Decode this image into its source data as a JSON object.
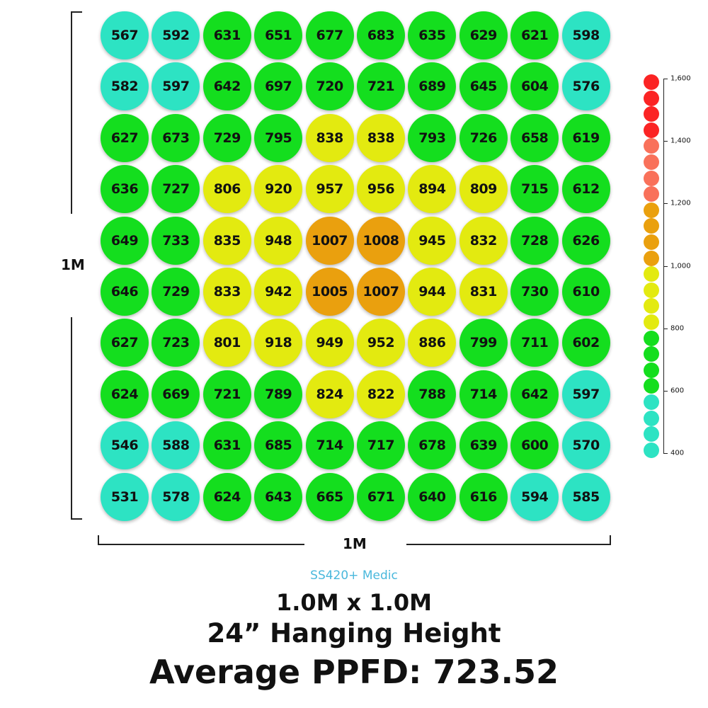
{
  "chart_data": {
    "type": "heatmap",
    "rows": [
      [
        567,
        592,
        631,
        651,
        677,
        683,
        635,
        629,
        621,
        598
      ],
      [
        582,
        597,
        642,
        697,
        720,
        721,
        689,
        645,
        604,
        576
      ],
      [
        627,
        673,
        729,
        795,
        838,
        838,
        793,
        726,
        658,
        619
      ],
      [
        636,
        727,
        806,
        920,
        957,
        956,
        894,
        809,
        715,
        612
      ],
      [
        649,
        733,
        835,
        948,
        1007,
        1008,
        945,
        832,
        728,
        626
      ],
      [
        646,
        729,
        833,
        942,
        1005,
        1007,
        944,
        831,
        730,
        610
      ],
      [
        627,
        723,
        801,
        918,
        949,
        952,
        886,
        799,
        711,
        602
      ],
      [
        624,
        669,
        721,
        789,
        824,
        822,
        788,
        714,
        642,
        597
      ],
      [
        546,
        588,
        631,
        685,
        714,
        717,
        678,
        639,
        600,
        570
      ],
      [
        531,
        578,
        624,
        643,
        665,
        671,
        640,
        616,
        594,
        585
      ]
    ],
    "xlabel": "1M",
    "ylabel": "1M",
    "color_scale": [
      {
        "min": 0,
        "max": 600,
        "color": "#2de3c3"
      },
      {
        "min": 600,
        "max": 800,
        "color": "#14de1e"
      },
      {
        "min": 800,
        "max": 1000,
        "color": "#e3ea10"
      },
      {
        "min": 1000,
        "max": 1200,
        "color": "#eaa00e"
      },
      {
        "min": 1200,
        "max": 1400,
        "color": "#f9715a"
      },
      {
        "min": 1400,
        "max": 1700,
        "color": "#fb2424"
      }
    ],
    "legend": {
      "placement": "right",
      "ticks": [
        "1,600",
        "1,400",
        "1,200",
        "1,000",
        "800",
        "600",
        "400"
      ],
      "dot_colors": [
        "#fb2424",
        "#fb2424",
        "#fb2424",
        "#fb2424",
        "#f9715a",
        "#f9715a",
        "#f9715a",
        "#f9715a",
        "#eaa00e",
        "#eaa00e",
        "#eaa00e",
        "#eaa00e",
        "#e3ea10",
        "#e3ea10",
        "#e3ea10",
        "#e3ea10",
        "#14de1e",
        "#14de1e",
        "#14de1e",
        "#14de1e",
        "#2de3c3",
        "#2de3c3",
        "#2de3c3",
        "#2de3c3"
      ]
    }
  },
  "footer": {
    "product": "SS420+ Medic",
    "size": "1.0M x 1.0M",
    "height": "24” Hanging Height",
    "average": "Average PPFD: 723.52"
  }
}
